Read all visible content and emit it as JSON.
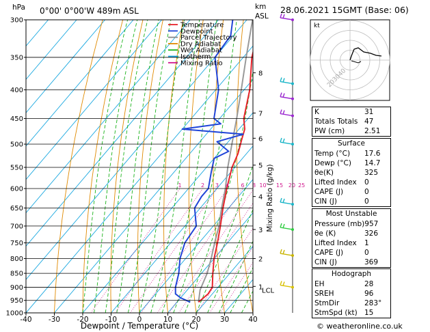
{
  "header": {
    "hpa": "hPa",
    "location": "0°00' 0°00'W  489m  ASL",
    "km": "km",
    "asl": "ASL",
    "date": "28.06.2021  15GMT  (Base: 06)"
  },
  "chart_data": {
    "type": "skewt",
    "xlabel": "Dewpoint / Temperature (°C)",
    "ylabel_left": "hPa",
    "ylabel_right": "Mixing Ratio (g/kg)",
    "xlim": [
      -40,
      40
    ],
    "ylim": [
      300,
      1000
    ],
    "x_ticks": [
      "-40",
      "-30",
      "-20",
      "-10",
      "0",
      "10",
      "20",
      "30",
      "40"
    ],
    "pressure_ticks": [
      "300",
      "350",
      "400",
      "450",
      "500",
      "550",
      "600",
      "650",
      "700",
      "750",
      "800",
      "850",
      "900",
      "950",
      "1000"
    ],
    "km_ticks": [
      {
        "p": 373,
        "label": "8"
      },
      {
        "p": 440,
        "label": "7"
      },
      {
        "p": 488,
        "label": "6"
      },
      {
        "p": 545,
        "label": "5"
      },
      {
        "p": 620,
        "label": "4"
      },
      {
        "p": 710,
        "label": "3"
      },
      {
        "p": 800,
        "label": "2"
      },
      {
        "p": 897,
        "label": "1"
      }
    ],
    "lcl_label": "LCL",
    "lcl_pressure": 910,
    "mixing_ratio_labels": [
      "1",
      "2",
      "3",
      "4",
      "6",
      "8",
      "10",
      "15",
      "20",
      "25"
    ],
    "legend": [
      {
        "name": "Temperature",
        "color": "#e8232b"
      },
      {
        "name": "Dewpoint",
        "color": "#2044d8"
      },
      {
        "name": "Parcel Trajectory",
        "color": "#888888"
      },
      {
        "name": "Dry Adiabat",
        "color": "#e08a00"
      },
      {
        "name": "Wet Adiabat",
        "color": "#19b219"
      },
      {
        "name": "Isotherm",
        "color": "#1aa8e0"
      },
      {
        "name": "Mixing Ratio",
        "color": "#d0148c"
      }
    ],
    "temperature": [
      [
        957,
        17.6
      ],
      [
        925,
        18.5
      ],
      [
        900,
        18
      ],
      [
        850,
        14
      ],
      [
        800,
        10
      ],
      [
        750,
        6.5
      ],
      [
        700,
        2.5
      ],
      [
        650,
        -2
      ],
      [
        600,
        -6.5
      ],
      [
        550,
        -11
      ],
      [
        520,
        -13
      ],
      [
        490,
        -16
      ],
      [
        470,
        -18
      ],
      [
        450,
        -21.5
      ],
      [
        400,
        -28
      ],
      [
        350,
        -37
      ],
      [
        300,
        -45
      ]
    ],
    "dewpoint": [
      [
        957,
        14.7
      ],
      [
        940,
        10
      ],
      [
        925,
        7
      ],
      [
        900,
        5
      ],
      [
        850,
        2
      ],
      [
        800,
        -2
      ],
      [
        750,
        -5
      ],
      [
        700,
        -6
      ],
      [
        650,
        -12
      ],
      [
        620,
        -13
      ],
      [
        600,
        -13
      ],
      [
        560,
        -17
      ],
      [
        530,
        -20
      ],
      [
        515,
        -17
      ],
      [
        495,
        -24
      ],
      [
        480,
        -17
      ],
      [
        470,
        -40
      ],
      [
        460,
        -28
      ],
      [
        450,
        -32
      ],
      [
        400,
        -39
      ],
      [
        350,
        -50
      ],
      [
        320,
        -51
      ],
      [
        300,
        -55
      ]
    ],
    "parcel": [
      [
        957,
        17.6
      ],
      [
        910,
        14.5
      ],
      [
        850,
        12
      ],
      [
        800,
        9
      ],
      [
        750,
        5.5
      ],
      [
        700,
        2
      ],
      [
        650,
        -2.5
      ],
      [
        600,
        -7
      ],
      [
        550,
        -12.5
      ],
      [
        500,
        -18
      ],
      [
        450,
        -24
      ],
      [
        400,
        -31
      ],
      [
        350,
        -39
      ],
      [
        300,
        -48
      ]
    ]
  },
  "hodograph": {
    "unit": "kt",
    "rings": [
      "20",
      "30",
      "40"
    ]
  },
  "indices": [
    {
      "label": "K",
      "value": "31"
    },
    {
      "label": "Totals Totals",
      "value": "47"
    },
    {
      "label": "PW (cm)",
      "value": "2.51"
    }
  ],
  "surface": {
    "title": "Surface",
    "rows": [
      {
        "label": "Temp (°C)",
        "value": "17.6"
      },
      {
        "label": "Dewp (°C)",
        "value": "14.7"
      },
      {
        "label": "θe(K)",
        "value": "325"
      },
      {
        "label": "Lifted Index",
        "value": "0"
      },
      {
        "label": "CAPE (J)",
        "value": "0"
      },
      {
        "label": "CIN (J)",
        "value": "0"
      }
    ]
  },
  "most_unstable": {
    "title": "Most Unstable",
    "rows": [
      {
        "label": "Pressure (mb)",
        "value": "957"
      },
      {
        "label": "θe (K)",
        "value": "326"
      },
      {
        "label": "Lifted Index",
        "value": "1"
      },
      {
        "label": "CAPE (J)",
        "value": "0"
      },
      {
        "label": "CIN (J)",
        "value": "369"
      }
    ]
  },
  "hodo_table": {
    "title": "Hodograph",
    "rows": [
      {
        "label": "EH",
        "value": "28"
      },
      {
        "label": "SREH",
        "value": "96"
      },
      {
        "label": "StmDir",
        "value": "283°"
      },
      {
        "label": "StmSpd (kt)",
        "value": "15"
      }
    ]
  },
  "credit": "© weatheronline.co.uk"
}
